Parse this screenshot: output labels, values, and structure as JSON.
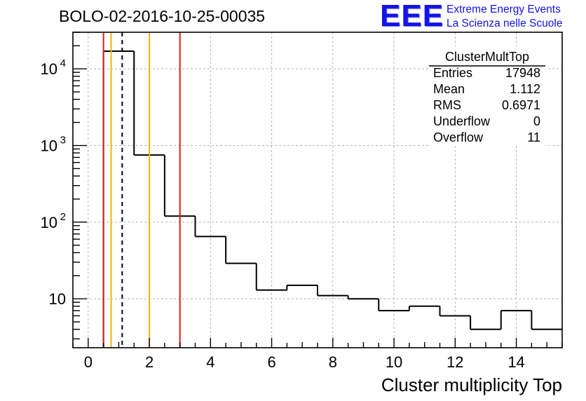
{
  "header": {
    "run_title": "BOLO-02-2016-10-25-00035",
    "logo_mark": "EEE",
    "logo_line1": "Extreme Energy Events",
    "logo_line2": "La Scienza nelle Scuole"
  },
  "colors": {
    "histogram": "#000000",
    "red_line": "#e41a1a",
    "orange_line": "#f5b400",
    "grid": "#b4b4b4",
    "logo": "#1414e6"
  },
  "stats_box": {
    "title": "ClusterMultTop",
    "rows": [
      {
        "label": "Entries",
        "value": "17948"
      },
      {
        "label": "Mean",
        "value": "1.112"
      },
      {
        "label": "RMS",
        "value": "0.6971"
      },
      {
        "label": "Underflow",
        "value": "0"
      },
      {
        "label": "Overflow",
        "value": "11"
      }
    ]
  },
  "chart_data": {
    "type": "histogram",
    "title": "BOLO-02-2016-10-25-00035",
    "xlabel": "Cluster multiplicity Top",
    "ylabel": "",
    "xlim": [
      -0.5,
      15.5
    ],
    "ylim": [
      2.3,
      30000
    ],
    "yscale": "log",
    "grid": true,
    "bin_edges": [
      0.5,
      1.5,
      2.5,
      3.5,
      4.5,
      5.5,
      6.5,
      7.5,
      8.5,
      9.5,
      10.5,
      11.5,
      12.5,
      13.5,
      14.5,
      15.5
    ],
    "counts": [
      17000,
      750,
      120,
      65,
      29,
      13,
      15,
      11,
      10,
      7,
      8,
      6,
      4,
      7,
      4
    ],
    "x_ticks": [
      0,
      2,
      4,
      6,
      8,
      10,
      12,
      14
    ],
    "x_tick_labels": [
      "0",
      "2",
      "4",
      "6",
      "8",
      "10",
      "12",
      "14"
    ],
    "y_ticks": [
      10,
      100,
      1000,
      10000
    ],
    "y_tick_labels": [
      {
        "base": "10",
        "exp": ""
      },
      {
        "base": "10",
        "exp": "2"
      },
      {
        "base": "10",
        "exp": "3"
      },
      {
        "base": "10",
        "exp": "4"
      }
    ],
    "vertical_lines": [
      {
        "x": 0.5,
        "color": "red",
        "style": "solid"
      },
      {
        "x": 3.0,
        "color": "red",
        "style": "solid"
      },
      {
        "x": 0.75,
        "color": "orange",
        "style": "solid"
      },
      {
        "x": 2.0,
        "color": "orange",
        "style": "solid"
      },
      {
        "x": 1.112,
        "color": "black",
        "style": "dashed"
      }
    ]
  }
}
